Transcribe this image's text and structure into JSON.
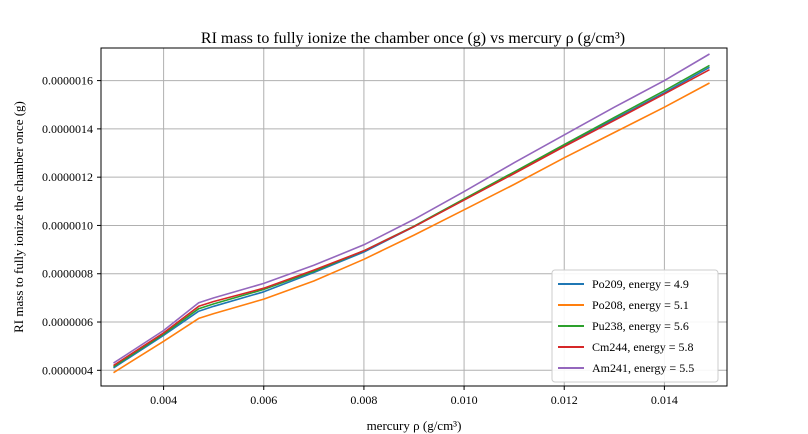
{
  "chart_data": {
    "type": "line",
    "title": "RI mass to fully ionize the chamber once (g) vs mercury ρ (g/cm³)",
    "xlabel": "mercury ρ (g/cm³)",
    "ylabel": "RI mass to fully ionize the chamber once (g)",
    "xlim": [
      0.00275,
      0.01525
    ],
    "ylim": [
      3.35e-07,
      1.735e-06
    ],
    "x_ticks": [
      0.004,
      0.006,
      0.008,
      0.01,
      0.012,
      0.014
    ],
    "x_tick_labels": [
      "0.004",
      "0.006",
      "0.008",
      "0.010",
      "0.012",
      "0.014"
    ],
    "y_ticks": [
      4e-07,
      6e-07,
      8e-07,
      1e-06,
      1.2e-06,
      1.4e-06,
      1.6e-06
    ],
    "y_tick_labels": [
      "0.0000004",
      "0.0000006",
      "0.0000008",
      "0.0000010",
      "0.0000012",
      "0.0000014",
      "0.0000016"
    ],
    "grid": true,
    "legend_position": "lower-right",
    "x": [
      0.003,
      0.004,
      0.0047,
      0.005,
      0.006,
      0.007,
      0.008,
      0.009,
      0.01,
      0.011,
      0.012,
      0.013,
      0.014,
      0.0149
    ],
    "series": [
      {
        "name": "Po209, energy = 4.9",
        "color": "#1f77b4",
        "values": [
          4.1e-07,
          5.45e-07,
          6.45e-07,
          6.65e-07,
          7.25e-07,
          8.05e-07,
          8.9e-07,
          9.95e-07,
          1.108e-06,
          1.22e-06,
          1.33e-06,
          1.44e-06,
          1.55e-06,
          1.655e-06
        ]
      },
      {
        "name": "Po208, energy = 5.1",
        "color": "#ff7f0e",
        "values": [
          3.9e-07,
          5.2e-07,
          6.15e-07,
          6.35e-07,
          6.95e-07,
          7.7e-07,
          8.6e-07,
          9.6e-07,
          1.065e-06,
          1.17e-06,
          1.28e-06,
          1.385e-06,
          1.49e-06,
          1.59e-06
        ]
      },
      {
        "name": "Pu238, energy = 5.6",
        "color": "#2ca02c",
        "values": [
          4.15e-07,
          5.5e-07,
          6.55e-07,
          6.75e-07,
          7.35e-07,
          8.1e-07,
          8.95e-07,
          9.97e-07,
          1.11e-06,
          1.222e-06,
          1.335e-06,
          1.447e-06,
          1.558e-06,
          1.663e-06
        ]
      },
      {
        "name": "Cm244, energy = 5.8",
        "color": "#d62728",
        "values": [
          4.2e-07,
          5.55e-07,
          6.65e-07,
          6.85e-07,
          7.4e-07,
          8.15e-07,
          8.95e-07,
          9.95e-07,
          1.105e-06,
          1.215e-06,
          1.327e-06,
          1.435e-06,
          1.545e-06,
          1.645e-06
        ]
      },
      {
        "name": "Am241, energy = 5.5",
        "color": "#9467bd",
        "values": [
          4.3e-07,
          5.65e-07,
          6.8e-07,
          7e-07,
          7.6e-07,
          8.35e-07,
          9.2e-07,
          1.025e-06,
          1.14e-06,
          1.26e-06,
          1.375e-06,
          1.49e-06,
          1.6e-06,
          1.71e-06
        ]
      }
    ]
  }
}
